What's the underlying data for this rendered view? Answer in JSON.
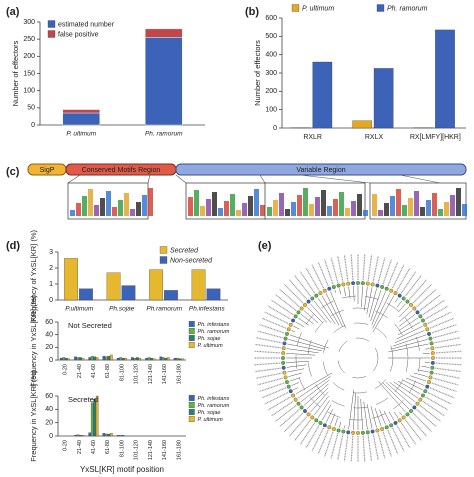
{
  "panel_labels": [
    "(a)",
    "(b)",
    "(c)",
    "(d)",
    "(e)"
  ],
  "domain_diagram": {
    "sigp": "SigP",
    "conserved": "Conserved Motifs Region",
    "variable": "Variable Region"
  },
  "chart_data": [
    {
      "type": "bar",
      "stacked": true,
      "legend": "upper left",
      "ylabel": "Number of effectors",
      "categories": [
        "P. ultimum",
        "Ph. ramorum"
      ],
      "series": [
        {
          "name": "estimated number",
          "color": "#3d63b8",
          "values": [
            35,
            255
          ]
        },
        {
          "name": "false positive",
          "color": "#c2464a",
          "values": [
            10,
            25
          ]
        }
      ],
      "ylim": [
        0,
        300
      ],
      "yticks": [
        0,
        50,
        100,
        150,
        200,
        250,
        300
      ]
    },
    {
      "type": "bar",
      "stacked": false,
      "legend": "top",
      "ylabel": "Number of effectors",
      "categories": [
        "RXLR",
        "RXLX",
        "RX[LMFY][HKR]"
      ],
      "series": [
        {
          "name": "P. ultimum",
          "color": "#e5a823",
          "values": [
            2,
            40,
            2
          ]
        },
        {
          "name": "Ph. ramorum",
          "color": "#3d63b8",
          "values": [
            360,
            325,
            535
          ]
        }
      ],
      "ylim": [
        0,
        600
      ],
      "yticks": [
        0,
        100,
        200,
        300,
        400,
        500,
        600
      ]
    },
    {
      "type": "bar",
      "stacked": false,
      "legend": "upper right",
      "ylabel": "Frequency of YxSL[KR] (%)",
      "categories": [
        "P.ultimum",
        "Ph.sojae",
        "Ph.ramorum",
        "Ph.infestans"
      ],
      "series": [
        {
          "name": "Secreted",
          "color": "#e5b830",
          "values": [
            2.6,
            1.7,
            1.9,
            1.9
          ]
        },
        {
          "name": "Non-secreted",
          "color": "#3d63b8",
          "values": [
            0.7,
            0.9,
            0.6,
            0.7
          ]
        }
      ],
      "ylim": [
        0,
        3
      ],
      "yticks": [
        0,
        1,
        2,
        3
      ]
    },
    {
      "type": "bar",
      "stacked": false,
      "legend": "right",
      "ylabel": "Frequency in YxSL[KR] (%)",
      "annotation": "Not Secreted",
      "categories": [
        "0-20",
        "21-40",
        "41-60",
        "61-80",
        "81-100",
        "101-120",
        "121-140",
        "141-160",
        "161-180"
      ],
      "series": [
        {
          "name": "Ph. infestans",
          "color": "#3d63b8",
          "values": [
            3,
            5,
            4,
            6,
            3,
            4,
            3,
            5,
            3
          ]
        },
        {
          "name": "Ph. ramorum",
          "color": "#5bb54a",
          "values": [
            4,
            4,
            6,
            5,
            4,
            3,
            4,
            4,
            3
          ]
        },
        {
          "name": "Ph. sojae",
          "color": "#2f7f6f",
          "values": [
            3,
            4,
            5,
            6,
            3,
            4,
            3,
            3,
            2
          ]
        },
        {
          "name": "P. ultimum",
          "color": "#e5b830",
          "values": [
            2,
            3,
            4,
            8,
            3,
            3,
            2,
            4,
            2
          ]
        }
      ],
      "ylim": [
        0,
        60
      ],
      "yticks": [
        0,
        20,
        40,
        60
      ]
    },
    {
      "type": "bar",
      "stacked": false,
      "legend": "right",
      "ylabel": "Frequency in YxSL[KR] (%)",
      "annotation": "Secreted",
      "xlabel": "YxSL[KR] motif position",
      "categories": [
        "0-20",
        "21-40",
        "41-60",
        "61-80",
        "81-100",
        "101-120",
        "121-140",
        "141-160",
        "161-180"
      ],
      "series": [
        {
          "name": "Ph. infestans",
          "color": "#3d63b8",
          "values": [
            0,
            1,
            5,
            4,
            1,
            0,
            0,
            0,
            0
          ]
        },
        {
          "name": "Ph. ramorum",
          "color": "#5bb54a",
          "values": [
            0,
            2,
            50,
            3,
            1,
            0,
            0,
            0,
            0
          ]
        },
        {
          "name": "Ph. sojae",
          "color": "#2f7f6f",
          "values": [
            0,
            1,
            55,
            3,
            1,
            0,
            0,
            0,
            0
          ]
        },
        {
          "name": "P. ultimum",
          "color": "#e5b830",
          "values": [
            0,
            1,
            60,
            4,
            0,
            0,
            0,
            0,
            0
          ]
        }
      ],
      "ylim": [
        0,
        60
      ],
      "yticks": [
        0,
        20,
        40,
        60
      ]
    }
  ]
}
